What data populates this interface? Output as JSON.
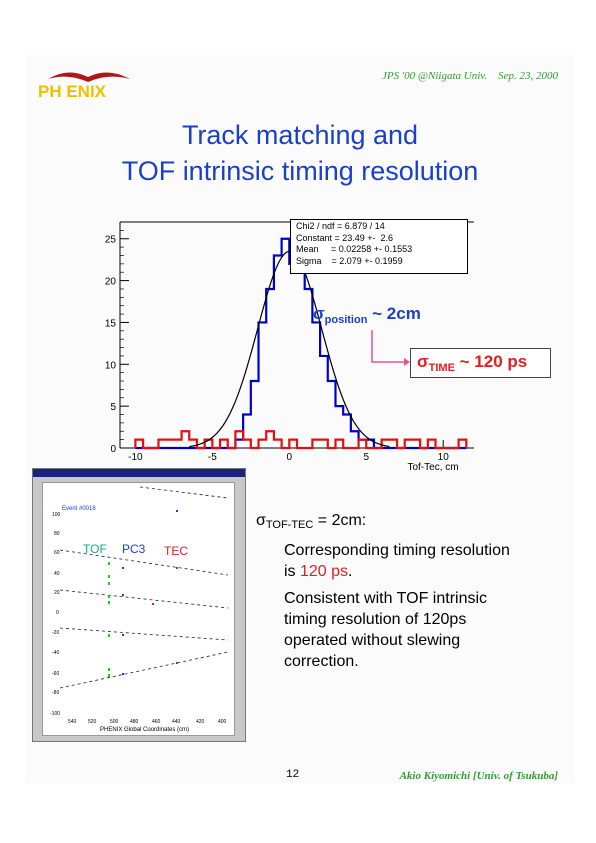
{
  "header": {
    "conference": "JPS '00 @Niigata Univ.    Sep. 23, 2000"
  },
  "logo": {
    "text": "PH ENIX"
  },
  "title": {
    "line1": "Track matching and",
    "line2": "TOF intrinsic timing resolution"
  },
  "chart_data": {
    "type": "bar",
    "xlabel": "Tof-Tec, cm",
    "xlim": [
      -11,
      12
    ],
    "ylim": [
      0,
      27
    ],
    "x_ticks": [
      "-10",
      "-5",
      "0",
      "5",
      "10"
    ],
    "y_ticks": [
      "0",
      "5",
      "10",
      "15",
      "20",
      "25"
    ],
    "bin_width": 0.5,
    "series": [
      {
        "values_x": [
          -10,
          -9.5,
          -9,
          -8.5,
          -8,
          -7.5,
          -7,
          -6.5,
          -6,
          -5.5,
          -5,
          -4.5,
          -4,
          -3.5,
          -3,
          -2.5,
          -2,
          -1.5,
          -1,
          -0.5,
          0,
          0.5,
          1,
          1.5,
          2,
          2.5,
          3,
          3.5,
          4,
          4.5,
          5,
          5.5,
          6,
          6.5,
          7,
          7.5,
          8,
          8.5,
          9,
          9.5,
          10,
          10.5,
          11
        ],
        "values": [
          0,
          0,
          0,
          0,
          0,
          0,
          0,
          0,
          0,
          0,
          0,
          0,
          0,
          1,
          4,
          8,
          15,
          19,
          23,
          25,
          22,
          25,
          19,
          15,
          11,
          8,
          5,
          4,
          2,
          1,
          1,
          0,
          0,
          0,
          0,
          0,
          0,
          0,
          0,
          0,
          0,
          0,
          0
        ],
        "color": "#0000cc"
      },
      {
        "values_x": [
          -10,
          -9.5,
          -9,
          -8.5,
          -8,
          -7.5,
          -7,
          -6.5,
          -6,
          -5.5,
          -5,
          -4.5,
          -4,
          -3.5,
          -3,
          -2.5,
          -2,
          -1.5,
          -1,
          -0.5,
          0,
          0.5,
          1,
          1.5,
          2,
          2.5,
          3,
          3.5,
          4,
          4.5,
          5,
          5.5,
          6,
          6.5,
          7,
          7.5,
          8,
          8.5,
          9,
          9.5,
          10,
          10.5,
          11
        ],
        "values": [
          1,
          0,
          0,
          1,
          1,
          1,
          2,
          1,
          0,
          1,
          0,
          1,
          0,
          2,
          1,
          0,
          1,
          2,
          1,
          0,
          1,
          0,
          0,
          1,
          1,
          0,
          1,
          0,
          0,
          1,
          0,
          0,
          1,
          1,
          0,
          1,
          1,
          0,
          1,
          0,
          0,
          0,
          1
        ],
        "color": "#e01010"
      }
    ],
    "fit": {
      "type": "gaussian",
      "constant": 23.49,
      "mean": 0.02258,
      "sigma": 2.079,
      "color": "#000000"
    },
    "stats": [
      "Chi2 / ndf = 6.879 / 14",
      "Constant = 23.49 +-  2.6",
      "Mean     = 0.02258 +- 0.1553",
      "Sigma    = 2.079 +- 0.1959"
    ]
  },
  "annotations": {
    "sigma_position": {
      "sym": "σ",
      "sub": "position",
      "rest": " ~ 2cm"
    },
    "sigma_time": {
      "sym": "σ",
      "sub": "TIME",
      "rest": " ~ 120 ps"
    }
  },
  "event_display": {
    "event": "Event #0018",
    "labels": {
      "tof": "TOF",
      "pc3": "PC3",
      "tec": "TEC"
    },
    "xlabel": "PHENIX Global Coordinates (cm)"
  },
  "text": {
    "lead_sym": "σ",
    "lead_sub": "TOF-TEC",
    "lead_rest": " = 2cm:",
    "p1_a": "Corresponding timing resolution",
    "p1_b": "is ",
    "p1_red": "120 ps",
    "p1_end": ".",
    "p2_a": "Consistent with TOF intrinsic",
    "p2_b": "timing resolution of 120ps",
    "p2_c": "operated without slewing",
    "p2_d": "correction."
  },
  "footer": {
    "page": "12",
    "author": "Akio Kiyomichi [Univ. of Tsukuba]"
  }
}
